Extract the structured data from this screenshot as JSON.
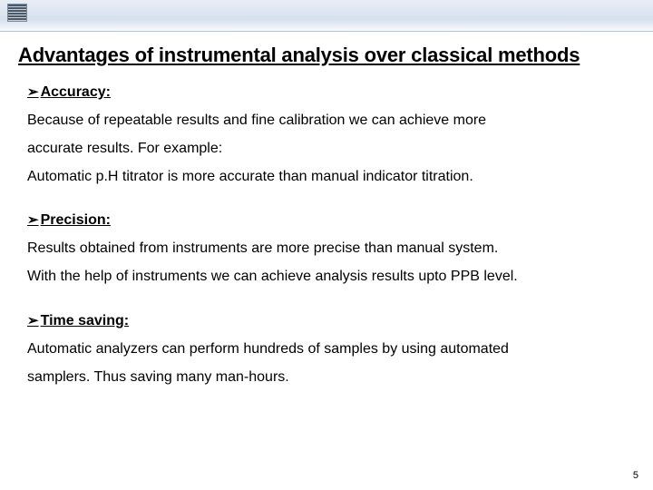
{
  "slide": {
    "title": "Advantages of instrumental analysis over classical methods",
    "page_number": "5",
    "background_color": "#ffffff",
    "header_gradient_top": "#e8eef6",
    "header_gradient_bottom": "#ffffff",
    "title_fontsize": 22,
    "body_fontsize": 16
  },
  "sections": [
    {
      "heading": "Accuracy:",
      "lines": [
        "Because of repeatable results and fine calibration we can achieve more",
        "accurate results. For example:",
        "Automatic p.H titrator is more accurate than manual indicator titration."
      ]
    },
    {
      "heading": "Precision:",
      "lines": [
        "Results obtained from instruments are more precise than manual system.",
        "With the help of instruments we can achieve analysis results upto PPB level."
      ]
    },
    {
      "heading": "Time saving:",
      "lines": [
        "Automatic analyzers can perform hundreds  of samples by using automated",
        "samplers. Thus saving many man-hours."
      ]
    }
  ]
}
